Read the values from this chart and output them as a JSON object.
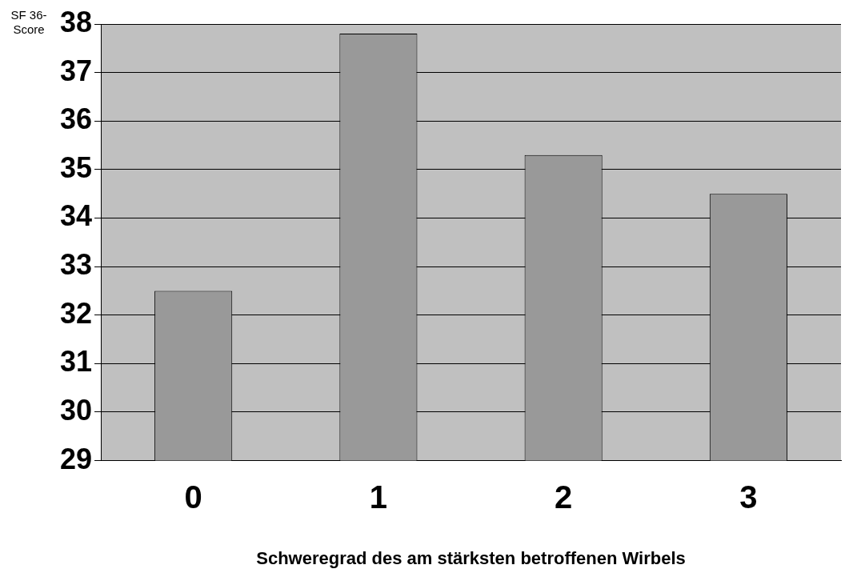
{
  "chart_data": {
    "type": "bar",
    "xlabel": "Schweregrad des am stärksten betroffenen Wirbels",
    "ylabel": "SF 36-Score",
    "categories": [
      "0",
      "1",
      "2",
      "3"
    ],
    "values": [
      32.5,
      37.8,
      35.3,
      34.5
    ],
    "color": "#999999",
    "ylim": [
      29,
      38
    ],
    "yticks": [
      29,
      30,
      31,
      32,
      33,
      34,
      35,
      36,
      37,
      38
    ],
    "grid": "y",
    "legend": false
  }
}
